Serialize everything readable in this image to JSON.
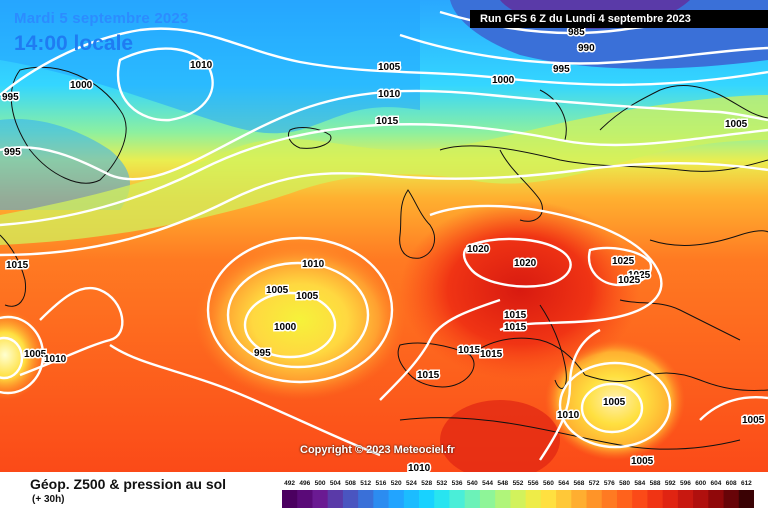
{
  "header": {
    "date": "Mardi 5 septembre 2023",
    "time": "14:00 locale",
    "run": "Run GFS 6 Z du Lundi 4 septembre 2023"
  },
  "copyright": "Copyright © 2023 Meteociel.fr",
  "legend": {
    "title": "Géop. Z500 & pression au sol",
    "subtitle": "(+ 30h)",
    "scale_values": [
      "492",
      "496",
      "500",
      "504",
      "508",
      "512",
      "516",
      "520",
      "524",
      "528",
      "532",
      "536",
      "540",
      "544",
      "548",
      "552",
      "556",
      "560",
      "564",
      "568",
      "572",
      "576",
      "580",
      "584",
      "588",
      "592",
      "596",
      "600",
      "604",
      "608",
      "612"
    ],
    "scale_colors": [
      "#4b0060",
      "#5a0a78",
      "#6a1a92",
      "#5a3aa8",
      "#4a55c0",
      "#3a70d8",
      "#2c8cf0",
      "#22a4ff",
      "#1cbcff",
      "#18d2ff",
      "#28e4f0",
      "#4aeed8",
      "#6cf2b8",
      "#8ef598",
      "#b0f57a",
      "#d2f25c",
      "#eeec48",
      "#ffe040",
      "#ffc838",
      "#ffae30",
      "#ff9428",
      "#ff7a22",
      "#ff621c",
      "#fb4a18",
      "#f03414",
      "#e02412",
      "#c81810",
      "#b0100e",
      "#90080a",
      "#680408",
      "#3a0204"
    ]
  },
  "isobar_labels": [
    "985",
    "990",
    "995",
    "1000",
    "1005",
    "1010",
    "1015",
    "1020",
    "1025"
  ],
  "map_labels": {
    "n985": "985",
    "n990": "990",
    "n995": "995",
    "n1000": "1000",
    "n1005": "1005",
    "n1010": "1010",
    "n1015": "1015",
    "n1020": "1020",
    "n1025": "1025"
  }
}
